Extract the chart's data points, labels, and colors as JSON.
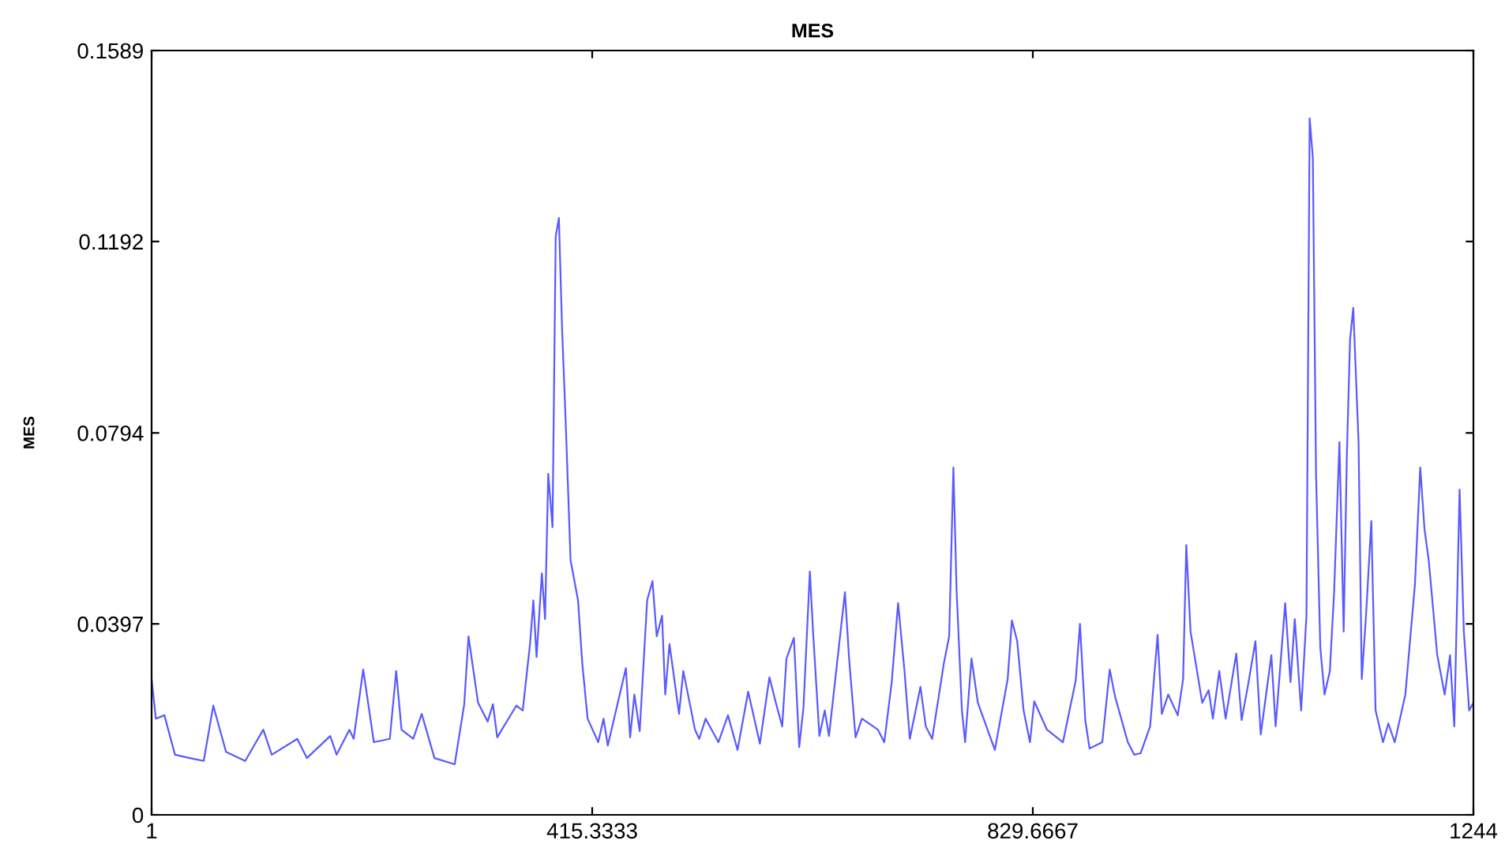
{
  "chart_data": {
    "type": "line",
    "title": "MES",
    "ylabel": "MES",
    "x": [
      1,
      5,
      13,
      23,
      37,
      50,
      59,
      71,
      89,
      106,
      114,
      138,
      147,
      169,
      175,
      187,
      191,
      200,
      210,
      225,
      231,
      236,
      247,
      255,
      267,
      286,
      295,
      299,
      308,
      317,
      322,
      326,
      344,
      350,
      357,
      360,
      363,
      368,
      371,
      374,
      378,
      381,
      384,
      387,
      390,
      395,
      402,
      406,
      411,
      421,
      426,
      430,
      447,
      451,
      455,
      460,
      467,
      472,
      476,
      481,
      484,
      488,
      497,
      501,
      512,
      516,
      522,
      534,
      543,
      552,
      562,
      573,
      582,
      588,
      594,
      598,
      605,
      610,
      614,
      620,
      623,
      629,
      634,
      638,
      653,
      657,
      663,
      669,
      684,
      690,
      697,
      703,
      709,
      714,
      724,
      729,
      735,
      746,
      751,
      755,
      758,
      763,
      766,
      772,
      778,
      794,
      806,
      810,
      815,
      821,
      827,
      831,
      843,
      858,
      870,
      874,
      879,
      883,
      895,
      902,
      907,
      919,
      925,
      931,
      940,
      947,
      951,
      957,
      966,
      971,
      974,
      978,
      989,
      995,
      999,
      1005,
      1011,
      1021,
      1026,
      1032,
      1039,
      1044,
      1054,
      1058,
      1067,
      1072,
      1076,
      1082,
      1087,
      1090,
      1093,
      1096,
      1100,
      1104,
      1109,
      1113,
      1118,
      1122,
      1125,
      1128,
      1131,
      1136,
      1139,
      1143,
      1148,
      1152,
      1159,
      1164,
      1170,
      1180,
      1189,
      1194,
      1198,
      1202,
      1210,
      1217,
      1222,
      1226,
      1231,
      1235,
      1240,
      1244
    ],
    "series": [
      {
        "color": "#5a5aff",
        "values": [
          0.0282,
          0.02,
          0.0207,
          0.0125,
          0.0118,
          0.0112,
          0.0227,
          0.0131,
          0.0112,
          0.0177,
          0.0125,
          0.0158,
          0.0118,
          0.0164,
          0.0125,
          0.0177,
          0.0158,
          0.0302,
          0.0151,
          0.0158,
          0.0299,
          0.0177,
          0.0158,
          0.021,
          0.0118,
          0.0105,
          0.023,
          0.0371,
          0.0233,
          0.0194,
          0.023,
          0.0161,
          0.0227,
          0.0217,
          0.0358,
          0.0446,
          0.0328,
          0.0502,
          0.0407,
          0.0709,
          0.0598,
          0.1202,
          0.1241,
          0.1011,
          0.084,
          0.0529,
          0.0446,
          0.0315,
          0.02,
          0.0151,
          0.02,
          0.0144,
          0.0305,
          0.0161,
          0.025,
          0.0174,
          0.0446,
          0.0486,
          0.0371,
          0.0414,
          0.025,
          0.0355,
          0.021,
          0.0299,
          0.0177,
          0.0158,
          0.02,
          0.0151,
          0.0207,
          0.0135,
          0.0256,
          0.0148,
          0.0286,
          0.0233,
          0.0184,
          0.0325,
          0.0368,
          0.0141,
          0.0223,
          0.0506,
          0.0381,
          0.0164,
          0.0217,
          0.0164,
          0.0463,
          0.0322,
          0.0161,
          0.02,
          0.0177,
          0.0151,
          0.0276,
          0.044,
          0.0299,
          0.0158,
          0.0266,
          0.0184,
          0.0158,
          0.0315,
          0.0371,
          0.0722,
          0.0466,
          0.0217,
          0.0151,
          0.0325,
          0.0233,
          0.0135,
          0.0282,
          0.0404,
          0.0361,
          0.0217,
          0.0151,
          0.0236,
          0.0177,
          0.0151,
          0.0279,
          0.0397,
          0.0197,
          0.0138,
          0.0151,
          0.0302,
          0.0246,
          0.0151,
          0.0125,
          0.0128,
          0.0184,
          0.0374,
          0.021,
          0.025,
          0.0207,
          0.0282,
          0.0561,
          0.0381,
          0.0233,
          0.0259,
          0.02,
          0.0299,
          0.02,
          0.0335,
          0.0197,
          0.0269,
          0.0361,
          0.0167,
          0.0332,
          0.0184,
          0.044,
          0.0276,
          0.0407,
          0.0217,
          0.0414,
          0.1448,
          0.1366,
          0.0709,
          0.0348,
          0.025,
          0.0299,
          0.0463,
          0.0775,
          0.0381,
          0.0749,
          0.0988,
          0.1054,
          0.0775,
          0.0282,
          0.0414,
          0.0611,
          0.0217,
          0.0151,
          0.019,
          0.0151,
          0.025,
          0.0479,
          0.0722,
          0.0594,
          0.0529,
          0.0332,
          0.025,
          0.0332,
          0.0184,
          0.0676,
          0.0381,
          0.0217,
          0.0233
        ]
      }
    ],
    "xlim": [
      1,
      1244
    ],
    "ylim": [
      0,
      0.1589
    ],
    "xticks": [
      1,
      415.3333,
      829.6667,
      1244
    ],
    "yticks": [
      0,
      0.0397,
      0.0794,
      0.1192,
      0.1589
    ],
    "grid": false,
    "legend": false,
    "marker": "none",
    "line_style": "solid"
  }
}
